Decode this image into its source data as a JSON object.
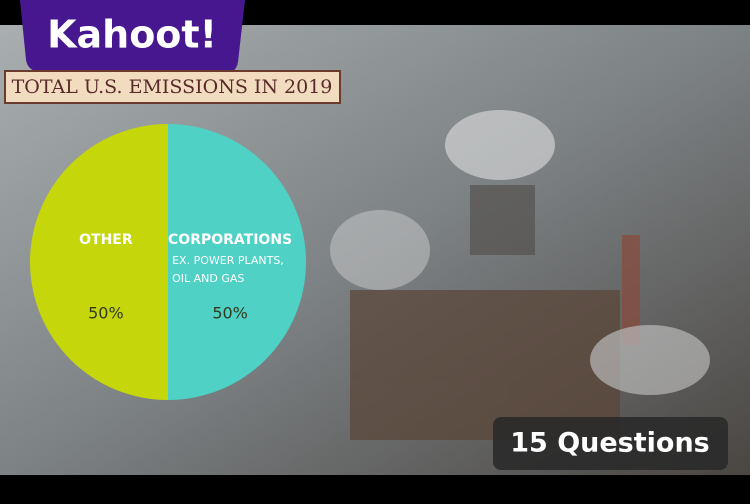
{
  "logo": "Kahoot!",
  "badge": "15 Questions",
  "chart_data": {
    "type": "pie",
    "title": "TOTAL U.S. EMISSIONS IN 2019",
    "categories": [
      "CORPORATIONS",
      "OTHER"
    ],
    "annotation": [
      "EX. POWER PLANTS,",
      "OIL AND GAS"
    ],
    "values": [
      50,
      50
    ],
    "value_labels": [
      "50%",
      "50%"
    ],
    "colors": [
      "#4fd1c5",
      "#c5d60a"
    ]
  }
}
